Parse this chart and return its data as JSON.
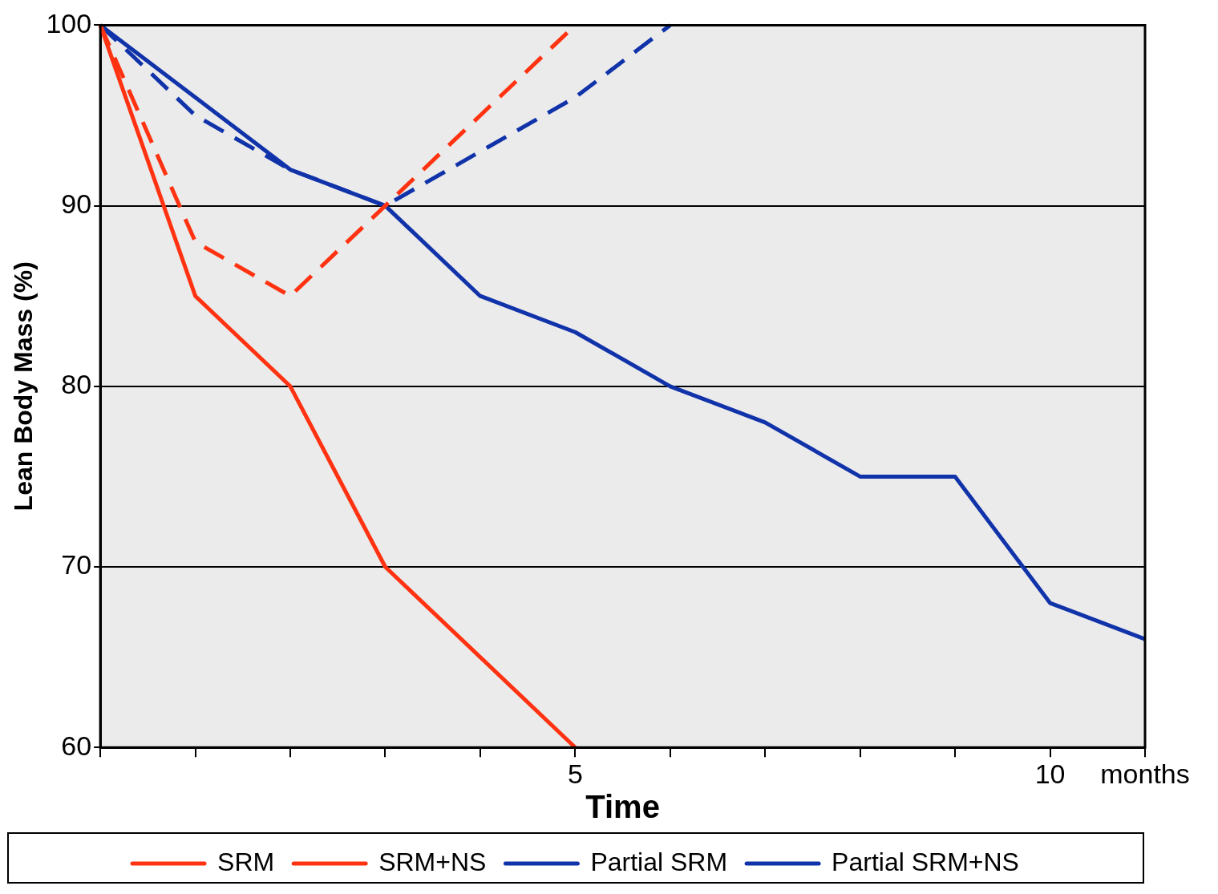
{
  "chart_data": {
    "type": "line",
    "xlabel": "Time",
    "ylabel": "Lean Body Mass (%)",
    "xlim": [
      0,
      11
    ],
    "xticks": [
      {
        "value": 0,
        "label": null
      },
      {
        "value": 1,
        "label": null
      },
      {
        "value": 2,
        "label": null
      },
      {
        "value": 3,
        "label": null
      },
      {
        "value": 4,
        "label": null
      },
      5,
      {
        "value": 6,
        "label": null
      },
      {
        "value": 7,
        "label": null
      },
      {
        "value": 8,
        "label": null
      },
      {
        "value": 9,
        "label": null
      },
      10,
      {
        "value": 11,
        "label": "months"
      }
    ],
    "ylim": [
      60,
      100
    ],
    "yticks": [
      60,
      70,
      80,
      90,
      100
    ],
    "grid": "y",
    "legend": "bottom",
    "marker": "none",
    "series": [
      {
        "name": "SRM",
        "color": "#ff3311",
        "line_style": "solid",
        "x": [
          0,
          1,
          2,
          3,
          5
        ],
        "values": [
          100,
          85,
          80,
          70,
          60
        ]
      },
      {
        "name": "SRM+NS",
        "color": "#ff3311",
        "line_style": "dashed",
        "x": [
          0,
          1,
          2,
          3,
          4,
          5
        ],
        "values": [
          100,
          88,
          85,
          90,
          95,
          100
        ]
      },
      {
        "name": "Partial SRM",
        "color": "#1133aa",
        "line_style": "solid",
        "x": [
          0,
          2,
          3,
          4,
          5,
          6,
          7,
          8,
          9,
          10,
          11
        ],
        "values": [
          100,
          92,
          90,
          85,
          83,
          80,
          78,
          75,
          75,
          68,
          66
        ]
      },
      {
        "name": "Partial SRM+NS",
        "color": "#1133aa",
        "line_style": "dashed",
        "x": [
          0,
          1,
          2,
          3,
          4,
          5,
          6
        ],
        "values": [
          100,
          95,
          92,
          90,
          93,
          96,
          100
        ]
      }
    ]
  }
}
